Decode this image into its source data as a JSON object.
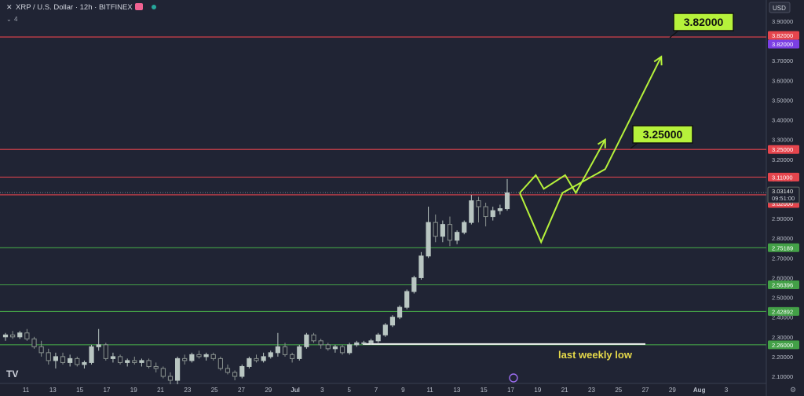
{
  "header": {
    "title": "XRP / U.S. Dollar · 12h · BITFINEX",
    "indicator_count": "4"
  },
  "currency_label": "USD",
  "colors": {
    "background": "#1f2230",
    "resistance": "#e5454d",
    "support": "#43a047",
    "projection": "#b6f23b",
    "weekly_low": "#f2f2f2",
    "annotation": "#e6d94a",
    "candle": "#b9c6c2",
    "purple_tag": "#7b3fe4"
  },
  "chart_data": {
    "type": "candlestick",
    "title": "XRP / U.S. Dollar · 12h · BITFINEX",
    "ylim": [
      2.05,
      4.0
    ],
    "y_ticks": [
      "3.90000",
      "3.80000",
      "3.70000",
      "3.60000",
      "3.50000",
      "3.40000",
      "3.30000",
      "3.20000",
      "3.10000",
      "3.00000",
      "2.90000",
      "2.80000",
      "2.70000",
      "2.60000",
      "2.50000",
      "2.40000",
      "2.30000",
      "2.20000",
      "2.10000"
    ],
    "x_ticks": [
      "11",
      "13",
      "15",
      "17",
      "19",
      "21",
      "23",
      "25",
      "27",
      "29",
      "Jul",
      "3",
      "5",
      "7",
      "9",
      "11",
      "13",
      "15",
      "17",
      "19",
      "21",
      "23",
      "25",
      "27",
      "29",
      "Aug",
      "3"
    ],
    "candles": [
      [
        2.3,
        2.32,
        2.28,
        2.31
      ],
      [
        2.31,
        2.33,
        2.29,
        2.3
      ],
      [
        2.3,
        2.33,
        2.29,
        2.32
      ],
      [
        2.32,
        2.34,
        2.28,
        2.29
      ],
      [
        2.29,
        2.3,
        2.24,
        2.25
      ],
      [
        2.25,
        2.28,
        2.2,
        2.22
      ],
      [
        2.22,
        2.24,
        2.16,
        2.18
      ],
      [
        2.18,
        2.22,
        2.14,
        2.2
      ],
      [
        2.2,
        2.22,
        2.16,
        2.17
      ],
      [
        2.17,
        2.21,
        2.15,
        2.19
      ],
      [
        2.19,
        2.2,
        2.15,
        2.16
      ],
      [
        2.16,
        2.18,
        2.14,
        2.17
      ],
      [
        2.17,
        2.26,
        2.16,
        2.25
      ],
      [
        2.25,
        2.34,
        2.23,
        2.26
      ],
      [
        2.26,
        2.27,
        2.18,
        2.19
      ],
      [
        2.19,
        2.22,
        2.17,
        2.2
      ],
      [
        2.2,
        2.21,
        2.16,
        2.17
      ],
      [
        2.17,
        2.19,
        2.15,
        2.18
      ],
      [
        2.18,
        2.2,
        2.16,
        2.17
      ],
      [
        2.17,
        2.19,
        2.15,
        2.18
      ],
      [
        2.18,
        2.19,
        2.14,
        2.15
      ],
      [
        2.15,
        2.17,
        2.12,
        2.14
      ],
      [
        2.14,
        2.15,
        2.09,
        2.1
      ],
      [
        2.1,
        2.12,
        2.06,
        2.08
      ],
      [
        2.08,
        2.2,
        2.06,
        2.19
      ],
      [
        2.19,
        2.21,
        2.16,
        2.18
      ],
      [
        2.18,
        2.22,
        2.17,
        2.21
      ],
      [
        2.21,
        2.23,
        2.19,
        2.2
      ],
      [
        2.2,
        2.22,
        2.18,
        2.21
      ],
      [
        2.21,
        2.22,
        2.18,
        2.19
      ],
      [
        2.19,
        2.2,
        2.13,
        2.14
      ],
      [
        2.14,
        2.16,
        2.11,
        2.12
      ],
      [
        2.12,
        2.13,
        2.08,
        2.1
      ],
      [
        2.1,
        2.16,
        2.09,
        2.15
      ],
      [
        2.15,
        2.2,
        2.14,
        2.19
      ],
      [
        2.19,
        2.21,
        2.17,
        2.18
      ],
      [
        2.18,
        2.22,
        2.17,
        2.2
      ],
      [
        2.2,
        2.23,
        2.19,
        2.22
      ],
      [
        2.22,
        2.32,
        2.2,
        2.25
      ],
      [
        2.25,
        2.27,
        2.2,
        2.21
      ],
      [
        2.21,
        2.22,
        2.17,
        2.19
      ],
      [
        2.19,
        2.26,
        2.18,
        2.25
      ],
      [
        2.25,
        2.32,
        2.24,
        2.31
      ],
      [
        2.31,
        2.32,
        2.27,
        2.28
      ],
      [
        2.28,
        2.29,
        2.24,
        2.26
      ],
      [
        2.26,
        2.27,
        2.23,
        2.24
      ],
      [
        2.24,
        2.26,
        2.22,
        2.25
      ],
      [
        2.25,
        2.26,
        2.21,
        2.22
      ],
      [
        2.22,
        2.27,
        2.21,
        2.26
      ],
      [
        2.26,
        2.28,
        2.25,
        2.27
      ],
      [
        2.27,
        2.28,
        2.26,
        2.27
      ],
      [
        2.27,
        2.29,
        2.26,
        2.28
      ],
      [
        2.28,
        2.32,
        2.27,
        2.31
      ],
      [
        2.31,
        2.37,
        2.3,
        2.36
      ],
      [
        2.36,
        2.41,
        2.35,
        2.4
      ],
      [
        2.4,
        2.46,
        2.39,
        2.45
      ],
      [
        2.45,
        2.54,
        2.44,
        2.53
      ],
      [
        2.53,
        2.61,
        2.52,
        2.6
      ],
      [
        2.6,
        2.73,
        2.59,
        2.71
      ],
      [
        2.71,
        2.96,
        2.7,
        2.88
      ],
      [
        2.88,
        2.92,
        2.78,
        2.81
      ],
      [
        2.81,
        2.89,
        2.78,
        2.87
      ],
      [
        2.87,
        2.91,
        2.76,
        2.79
      ],
      [
        2.79,
        2.84,
        2.77,
        2.83
      ],
      [
        2.83,
        2.89,
        2.82,
        2.88
      ],
      [
        2.88,
        3.02,
        2.87,
        2.99
      ],
      [
        2.99,
        3.01,
        2.88,
        2.96
      ],
      [
        2.96,
        2.98,
        2.86,
        2.91
      ],
      [
        2.91,
        2.96,
        2.89,
        2.94
      ],
      [
        2.94,
        2.97,
        2.92,
        2.95
      ],
      [
        2.95,
        3.1,
        2.94,
        3.03
      ]
    ],
    "horizontal_levels": [
      {
        "price": 3.82,
        "label": "3.82000",
        "type": "resistance"
      },
      {
        "price": 3.25,
        "label": "3.25000",
        "type": "resistance"
      },
      {
        "price": 3.11,
        "label": "3.11000",
        "type": "resistance"
      },
      {
        "price": 3.02,
        "label": "3.02000",
        "type": "resistance"
      },
      {
        "price": 2.75189,
        "label": "2.75189",
        "type": "support"
      },
      {
        "price": 2.56396,
        "label": "2.56396",
        "type": "support"
      },
      {
        "price": 2.42892,
        "label": "2.42892",
        "type": "support"
      },
      {
        "price": 2.26,
        "label": "2.26000",
        "type": "support"
      }
    ],
    "current_price": "3.03140",
    "countdown": "09:51:00",
    "alert_price": "3.82000",
    "targets": [
      {
        "label": "3.82000",
        "price": 3.82
      },
      {
        "label": "3.25000",
        "price": 3.25
      }
    ],
    "annotation": "last weekly low",
    "weekly_low_price": 2.26,
    "projection_paths": [
      {
        "name": "path-a",
        "points": [
          [
            0,
            3.03
          ],
          [
            1.6,
            2.78
          ],
          [
            3.2,
            3.03
          ],
          [
            6.4,
            3.15
          ],
          [
            10.6,
            3.72
          ]
        ]
      },
      {
        "name": "path-b",
        "points": [
          [
            0,
            3.03
          ],
          [
            1.2,
            3.12
          ],
          [
            1.8,
            3.05
          ],
          [
            3.4,
            3.12
          ],
          [
            4.2,
            3.03
          ],
          [
            6.4,
            3.3
          ]
        ]
      }
    ]
  }
}
